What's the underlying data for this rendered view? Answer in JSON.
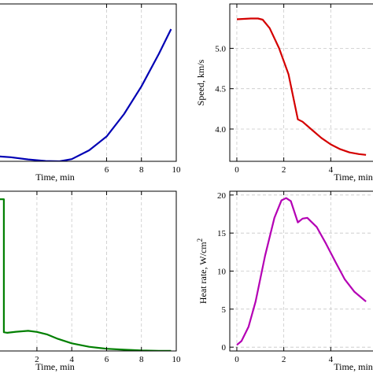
{
  "chart_data": [
    {
      "type": "line",
      "panel": "top-left",
      "xlabel": "Time, min",
      "ylabel": "",
      "xlim": [
        -0.3,
        10
      ],
      "ylim": [
        0,
        100
      ],
      "x_ticks": [
        6,
        8,
        10
      ],
      "y_ticks": [],
      "grid": true,
      "color": "#0000b4",
      "series": [
        {
          "x": [
            -0.3,
            0.5,
            1.5,
            2.5,
            3.3,
            4.0,
            5.0,
            6.0,
            7.0,
            8.0,
            9.0,
            9.7
          ],
          "y": [
            3.2,
            2.6,
            1.2,
            0.2,
            0.0,
            1.4,
            7.0,
            15.8,
            30.0,
            47.6,
            68.3,
            84.0
          ]
        }
      ]
    },
    {
      "type": "line",
      "panel": "top-right",
      "xlabel": "Time, min",
      "ylabel": "Speed, km/s",
      "xlim": [
        -0.3,
        6
      ],
      "ylim": [
        3.6,
        5.55
      ],
      "x_ticks": [
        0,
        2,
        4
      ],
      "y_ticks": [
        4.0,
        4.5,
        5.0
      ],
      "y_tick_labels": [
        "4.0",
        "4.5",
        "5.0"
      ],
      "grid": true,
      "color": "#d40000",
      "series": [
        {
          "x": [
            0.0,
            0.3,
            0.6,
            0.9,
            1.1,
            1.4,
            1.8,
            2.2,
            2.6,
            2.8,
            3.2,
            3.6,
            4.0,
            4.4,
            4.8,
            5.2,
            5.5
          ],
          "y": [
            5.36,
            5.365,
            5.37,
            5.37,
            5.355,
            5.25,
            5.0,
            4.68,
            4.12,
            4.09,
            3.99,
            3.89,
            3.81,
            3.75,
            3.71,
            3.69,
            3.68
          ]
        }
      ]
    },
    {
      "type": "line",
      "panel": "bottom-left",
      "xlabel": "Time, min",
      "ylabel": "",
      "xlim": [
        -0.3,
        10
      ],
      "ylim": [
        0,
        100
      ],
      "x_ticks": [
        2,
        4,
        6,
        8,
        10
      ],
      "y_ticks": [],
      "grid": true,
      "color": "#007f00",
      "series": [
        {
          "x": [
            -0.3,
            0.1,
            0.1,
            0.3,
            0.8,
            1.5,
            2.0,
            2.6,
            3.2,
            4.0,
            5.0,
            6.0,
            7.0,
            8.0,
            9.0,
            9.7
          ],
          "y": [
            95.0,
            95.0,
            11.7,
            11.4,
            12.0,
            12.6,
            11.9,
            10.3,
            7.6,
            4.8,
            2.6,
            1.4,
            0.8,
            0.3,
            0.1,
            0.1
          ]
        }
      ]
    },
    {
      "type": "line",
      "panel": "bottom-right",
      "xlabel": "Time, min",
      "ylabel": "Heat rate, W/cm",
      "ylabel_superscript": "2",
      "xlim": [
        -0.3,
        6
      ],
      "ylim": [
        -0.5,
        20.5
      ],
      "x_ticks": [
        0,
        2,
        4
      ],
      "y_ticks": [
        0,
        5,
        10,
        15,
        20
      ],
      "grid": true,
      "color": "#b400b4",
      "series": [
        {
          "x": [
            0.0,
            0.2,
            0.5,
            0.8,
            1.2,
            1.6,
            1.9,
            2.1,
            2.3,
            2.6,
            2.8,
            3.0,
            3.4,
            3.8,
            4.2,
            4.6,
            5.0,
            5.5
          ],
          "y": [
            0.3,
            0.8,
            2.7,
            6.0,
            12.0,
            17.0,
            19.3,
            19.6,
            19.2,
            16.4,
            16.9,
            17.0,
            15.8,
            13.6,
            11.2,
            8.9,
            7.3,
            6.0
          ]
        }
      ]
    }
  ]
}
